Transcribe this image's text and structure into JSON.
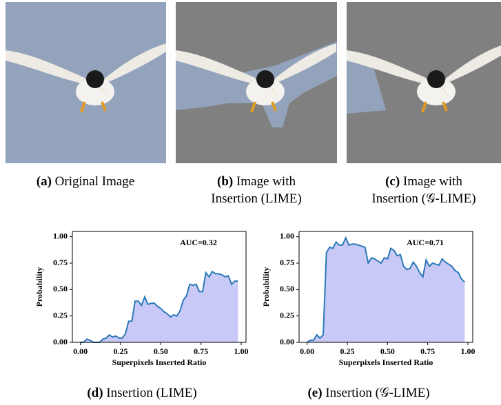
{
  "images": [
    {
      "label": "(a)",
      "lines": [
        "Original Image"
      ]
    },
    {
      "label": "(b)",
      "lines": [
        "Image with",
        "Insertion (LIME)"
      ]
    },
    {
      "label": "(c)",
      "lines": [
        "Image with",
        "Insertion (𝒢-LIME)"
      ]
    }
  ],
  "chart_data": [
    {
      "type": "area",
      "caption_label": "(d)",
      "caption": "Insertion (LIME)",
      "annotation": "AUC=0.32",
      "xlabel": "Superpixels Inserted Ratio",
      "ylabel": "Probability",
      "xlim": [
        -0.05,
        1.03
      ],
      "ylim": [
        0,
        1.05
      ],
      "xticks": [
        {
          "value": 0,
          "label": "0.00"
        },
        {
          "value": 0.25,
          "label": "0.25"
        },
        {
          "value": 0.5,
          "label": "0.50"
        },
        {
          "value": 0.75,
          "label": "0.75"
        },
        {
          "value": 1,
          "label": "1.00"
        }
      ],
      "yticks": [
        {
          "value": 0,
          "label": "0.00"
        },
        {
          "value": 0.25,
          "label": "0.25"
        },
        {
          "value": 0.5,
          "label": "0.50"
        },
        {
          "value": 0.75,
          "label": "0.75"
        },
        {
          "value": 1,
          "label": "1.00"
        }
      ],
      "line_color": "#2a78b8",
      "fill_color": "#c9c9f7",
      "x": [
        0,
        0.02,
        0.04,
        0.06,
        0.08,
        0.1,
        0.12,
        0.14,
        0.16,
        0.18,
        0.2,
        0.22,
        0.24,
        0.26,
        0.28,
        0.3,
        0.32,
        0.34,
        0.36,
        0.38,
        0.4,
        0.42,
        0.44,
        0.46,
        0.48,
        0.5,
        0.52,
        0.54,
        0.56,
        0.58,
        0.6,
        0.62,
        0.64,
        0.66,
        0.68,
        0.7,
        0.72,
        0.74,
        0.76,
        0.78,
        0.8,
        0.82,
        0.84,
        0.86,
        0.88,
        0.9,
        0.92,
        0.94,
        0.96,
        0.98
      ],
      "values": [
        0,
        0,
        0.03,
        0.02,
        0,
        0,
        0,
        0.03,
        0.04,
        0.07,
        0.05,
        0.06,
        0.04,
        0.04,
        0.08,
        0.2,
        0.2,
        0.39,
        0.39,
        0.35,
        0.43,
        0.36,
        0.37,
        0.37,
        0.34,
        0.32,
        0.29,
        0.27,
        0.24,
        0.26,
        0.25,
        0.3,
        0.4,
        0.44,
        0.55,
        0.54,
        0.55,
        0.48,
        0.48,
        0.66,
        0.62,
        0.67,
        0.65,
        0.65,
        0.64,
        0.62,
        0.63,
        0.55,
        0.58,
        0.58
      ]
    },
    {
      "type": "area",
      "caption_label": "(e)",
      "caption": "Insertion (𝒢-LIME)",
      "annotation": "AUC=0.71",
      "xlabel": "Superpixels Inserted Ratio",
      "ylabel": "Probability",
      "xlim": [
        -0.05,
        1.03
      ],
      "ylim": [
        0,
        1.05
      ],
      "xticks": [
        {
          "value": 0,
          "label": "0.00"
        },
        {
          "value": 0.25,
          "label": "0.25"
        },
        {
          "value": 0.5,
          "label": "0.50"
        },
        {
          "value": 0.75,
          "label": "0.75"
        },
        {
          "value": 1,
          "label": "1.00"
        }
      ],
      "yticks": [
        {
          "value": 0,
          "label": "0.00"
        },
        {
          "value": 0.25,
          "label": "0.25"
        },
        {
          "value": 0.5,
          "label": "0.50"
        },
        {
          "value": 0.75,
          "label": "0.75"
        },
        {
          "value": 1,
          "label": "1.00"
        }
      ],
      "line_color": "#2a78b8",
      "fill_color": "#c9c9f7",
      "x": [
        0,
        0.02,
        0.04,
        0.06,
        0.08,
        0.1,
        0.12,
        0.14,
        0.16,
        0.18,
        0.2,
        0.22,
        0.24,
        0.26,
        0.28,
        0.3,
        0.32,
        0.34,
        0.36,
        0.38,
        0.4,
        0.42,
        0.44,
        0.46,
        0.48,
        0.5,
        0.52,
        0.54,
        0.56,
        0.58,
        0.6,
        0.62,
        0.64,
        0.66,
        0.68,
        0.7,
        0.72,
        0.74,
        0.76,
        0.78,
        0.8,
        0.82,
        0.84,
        0.86,
        0.88,
        0.9,
        0.92,
        0.94,
        0.96,
        0.98
      ],
      "values": [
        0,
        0.02,
        0.02,
        0.07,
        0.04,
        0.07,
        0.85,
        0.9,
        0.89,
        0.95,
        0.92,
        0.92,
        0.99,
        0.92,
        0.93,
        0.93,
        0.92,
        0.91,
        0.9,
        0.75,
        0.8,
        0.79,
        0.77,
        0.75,
        0.8,
        0.79,
        0.89,
        0.87,
        0.82,
        0.83,
        0.72,
        0.69,
        0.7,
        0.76,
        0.72,
        0.66,
        0.62,
        0.78,
        0.72,
        0.75,
        0.74,
        0.73,
        0.79,
        0.76,
        0.74,
        0.72,
        0.68,
        0.66,
        0.6,
        0.57
      ]
    }
  ]
}
